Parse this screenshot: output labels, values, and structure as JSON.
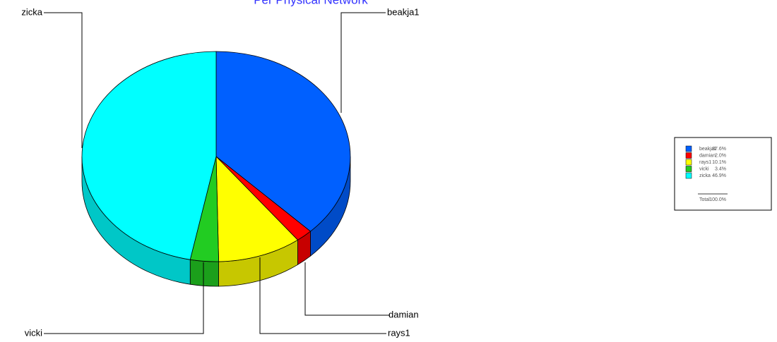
{
  "chart_data": {
    "type": "pie",
    "title": "Per Physical Network",
    "categories": [
      "beakja1",
      "damian",
      "rays1",
      "vicki",
      "zicka"
    ],
    "values": [
      37.6,
      2.0,
      10.1,
      3.4,
      46.9
    ],
    "value_labels": [
      "37.6%",
      "2.0%",
      "10.1%",
      "3.4%",
      "46.9%"
    ],
    "colors": [
      "#0060ff",
      "#ff0000",
      "#ffff00",
      "#22cc22",
      "#00ffff"
    ],
    "total": {
      "label": "Total",
      "value": 100.0,
      "value_label": "100.0%"
    }
  }
}
